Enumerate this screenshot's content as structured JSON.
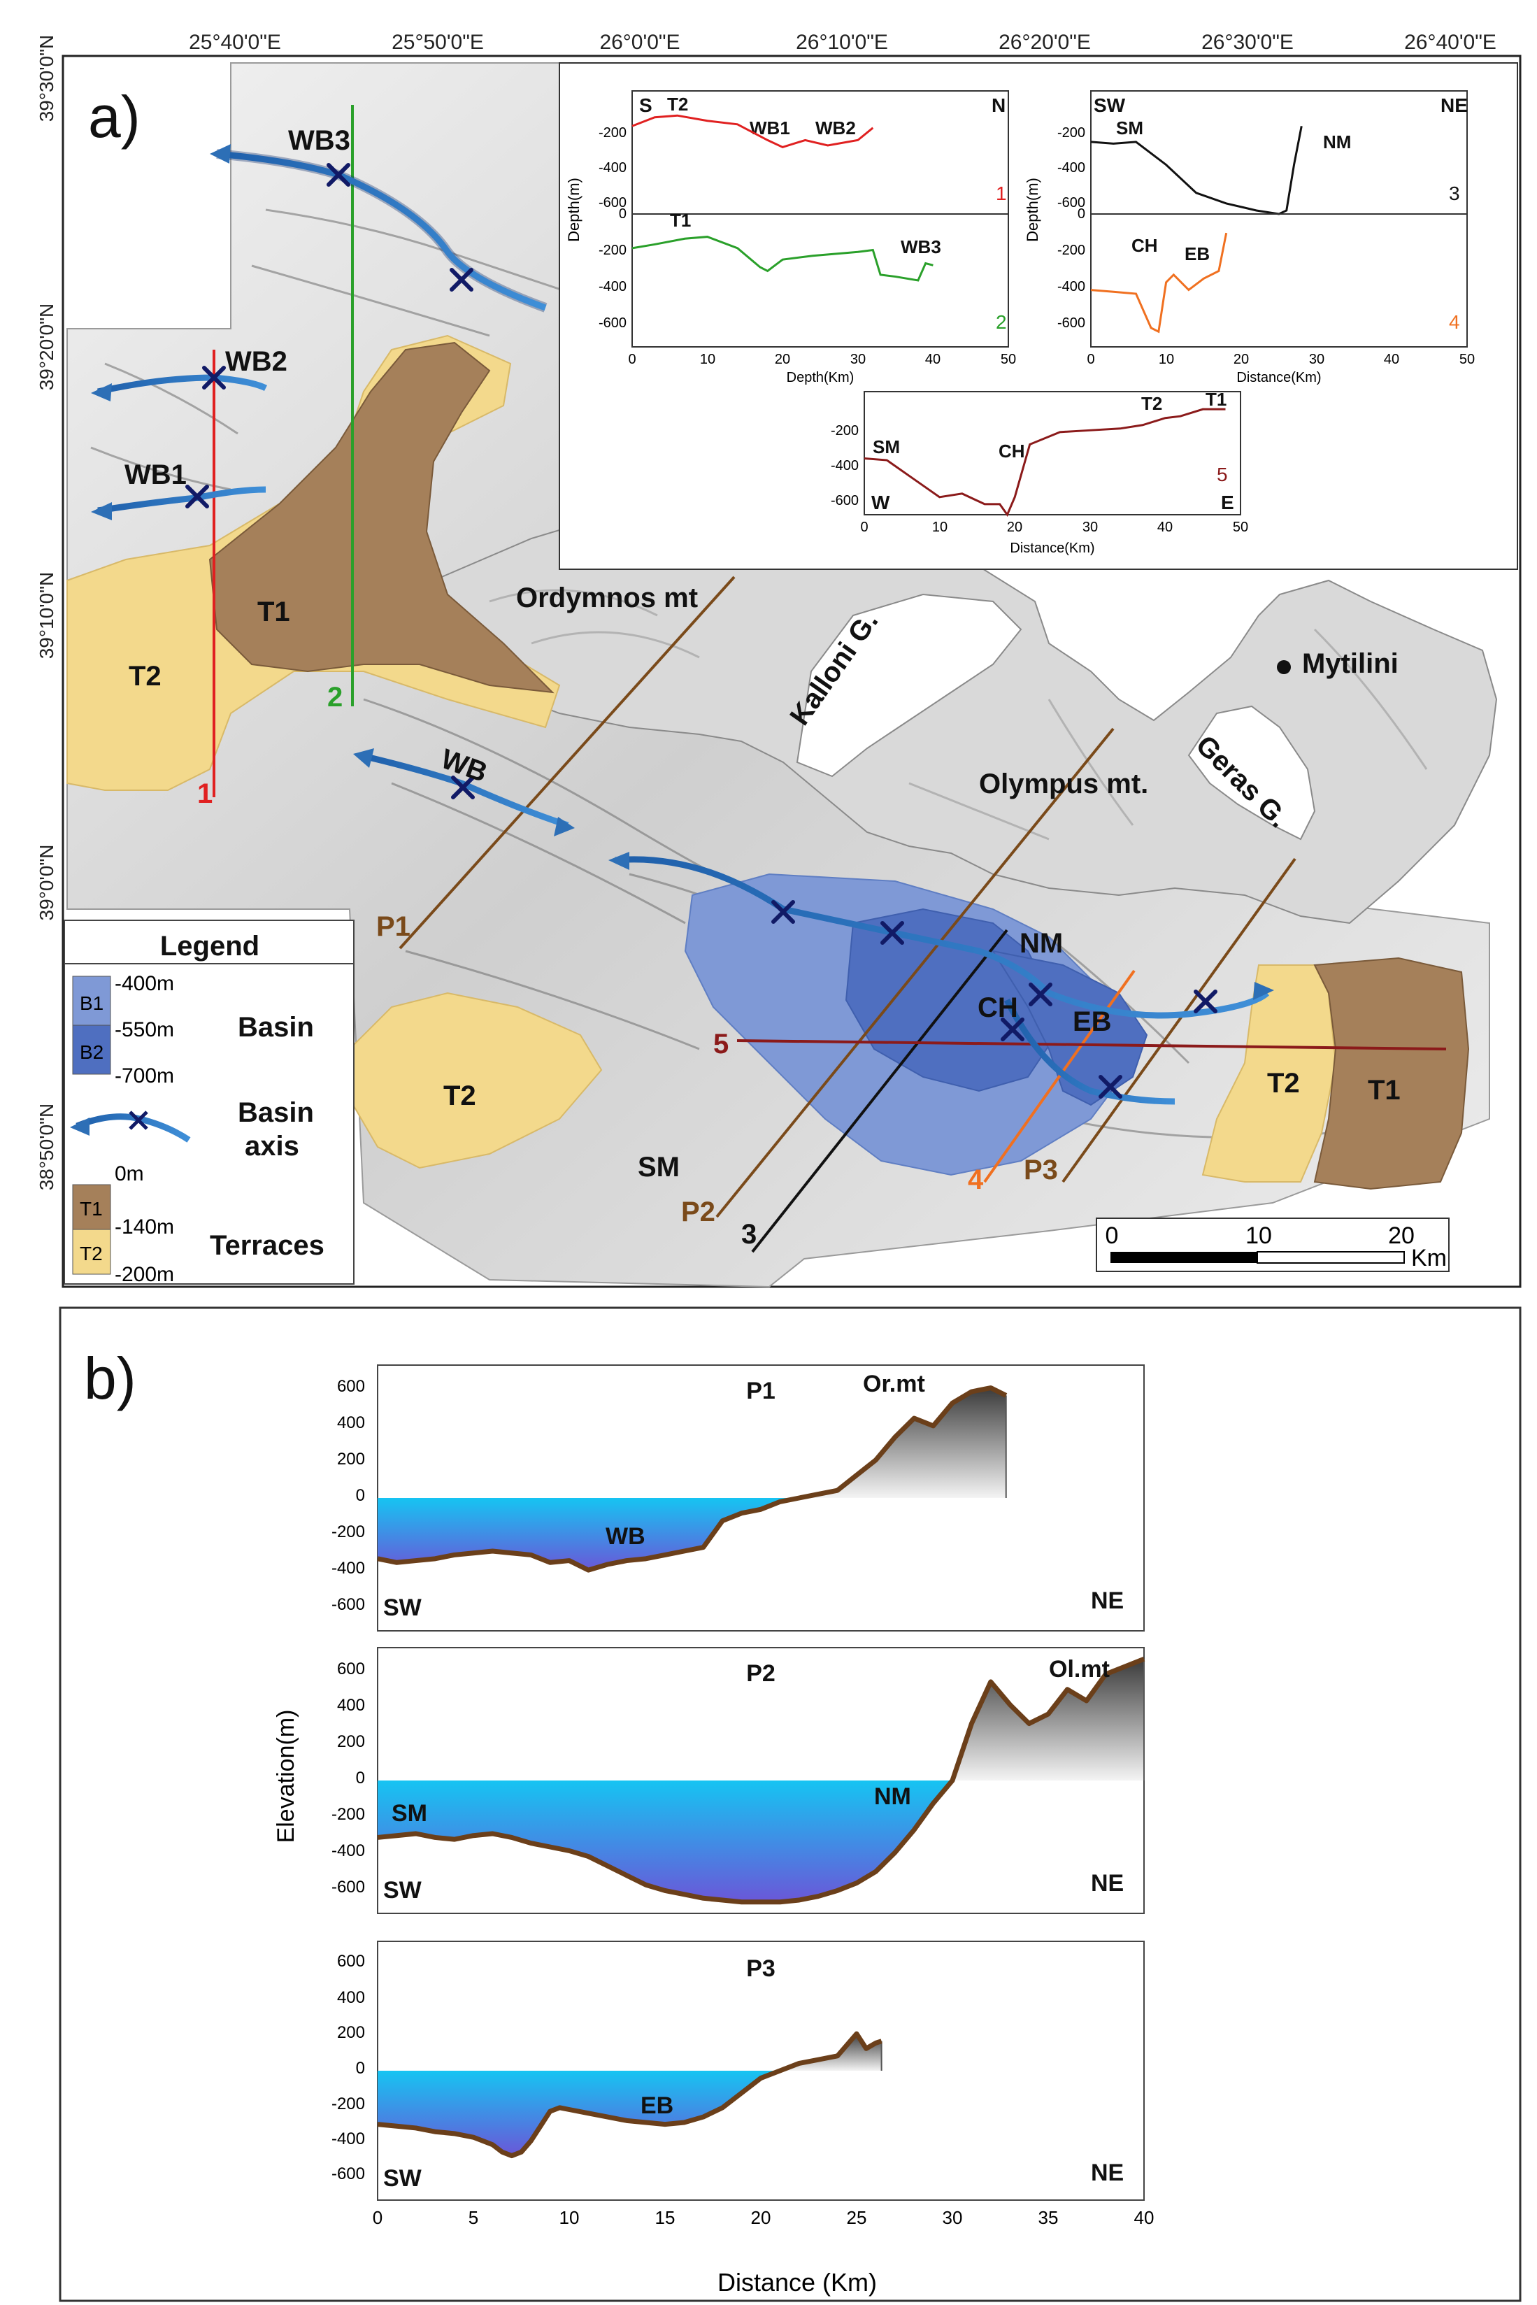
{
  "panel_a": {
    "label": "a)",
    "lon_ticks": [
      "25°40'0\"E",
      "25°50'0\"E",
      "26°0'0\"E",
      "26°10'0\"E",
      "26°20'0\"E",
      "26°30'0\"E",
      "26°40'0\"E"
    ],
    "lat_ticks": [
      "39°30'0\"N",
      "39°20'0\"N",
      "39°10'0\"N",
      "39°0'0\"N",
      "38°50'0\"N"
    ],
    "places": {
      "ordymnos": "Ordymnos mt",
      "kalloni": "Kalloni G.",
      "mytilini": "Mytilini",
      "olympus": "Olympus mt.",
      "geras": "Geras G."
    },
    "feature_labels": {
      "wb3": "WB3",
      "wb2": "WB2",
      "wb1": "WB1",
      "wb": "WB",
      "t1_west": "T1",
      "t2_west": "T2",
      "t2_south": "T2",
      "t2_east": "T2",
      "t1_east": "T1",
      "nm": "NM",
      "ch": "CH",
      "eb": "EB",
      "sm": "SM"
    },
    "profile_lines": {
      "l1": "1",
      "l2": "2",
      "l3": "3",
      "l4": "4",
      "l5": "5",
      "p1": "P1",
      "p2": "P2",
      "p3": "P3"
    },
    "legend": {
      "title": "Legend",
      "b1": "B1",
      "b2": "B2",
      "d400": "-400m",
      "d550": "-550m",
      "d700": "-700m",
      "basin": "Basin",
      "basin_axis_1": "Basin",
      "basin_axis_2": "axis",
      "d0": "0m",
      "d140": "-140m",
      "d200": "-200m",
      "t1": "T1",
      "t2": "T2",
      "terraces": "Terraces"
    },
    "scale_bar": {
      "ticks": [
        "0",
        "10",
        "20"
      ],
      "unit": "Km"
    },
    "colors": {
      "terrace_T1": "#a5805a",
      "terrace_T2": "#f3d98c",
      "basin_B1": "#7f99d6",
      "basin_B2": "#4f6fc0",
      "axis": "#2d6fb6",
      "line1": "#e02020",
      "line2": "#2aa02a",
      "line3": "#111111",
      "line4": "#f07020",
      "line5": "#8b1a1a",
      "lineP": "#7a4a1a"
    },
    "inset_profiles": {
      "p1": {
        "left": "S",
        "right": "N",
        "num": "1",
        "labels": [
          "T2",
          "WB1",
          "WB2"
        ],
        "ylabel": "Depth(m)",
        "yticks": [
          "-200",
          "-400",
          "-600",
          "0"
        ]
      },
      "p2": {
        "num": "2",
        "labels": [
          "T1",
          "WB3"
        ],
        "ylabel": "Depth(m)",
        "yticks": [
          "-200",
          "-400",
          "-600"
        ],
        "xticks": [
          "0",
          "10",
          "20",
          "30",
          "40",
          "50"
        ],
        "xlabel": "Depth(Km)"
      },
      "p3": {
        "left": "SW",
        "right": "NE",
        "num": "3",
        "labels": [
          "SM",
          "NM"
        ],
        "ylabel": "Depth(m)",
        "yticks": [
          "-200",
          "-400",
          "-600",
          "0"
        ]
      },
      "p4": {
        "num": "4",
        "labels": [
          "CH",
          "EB"
        ],
        "yticks": [
          "-200",
          "-400",
          "-600"
        ],
        "xticks": [
          "0",
          "10",
          "20",
          "30",
          "40",
          "50"
        ],
        "xlabel": "Distance(Km)"
      },
      "p5": {
        "num": "5",
        "labels": [
          "SM",
          "CH",
          "T2",
          "T1",
          "W",
          "E"
        ],
        "yticks": [
          "-200",
          "-400",
          "-600"
        ],
        "xticks": [
          "0",
          "10",
          "20",
          "30",
          "40",
          "50"
        ],
        "xlabel": "Distance(Km)"
      }
    }
  },
  "panel_b": {
    "label": "b)",
    "ylabel": "Elevation(m)",
    "xlabel": "Distance (Km)",
    "yticks": [
      "600",
      "400",
      "200",
      "0",
      "-200",
      "-400",
      "-600"
    ],
    "xticks": [
      "0",
      "5",
      "10",
      "15",
      "20",
      "25",
      "30",
      "35",
      "40"
    ],
    "p1": {
      "title": "P1",
      "left": "SW",
      "right": "NE",
      "labels": [
        "Or.mt",
        "WB"
      ]
    },
    "p2": {
      "title": "P2",
      "left": "SW",
      "right": "NE",
      "labels": [
        "Ol.mt",
        "SM",
        "NM"
      ]
    },
    "p3": {
      "title": "P3",
      "left": "SW",
      "right": "NE",
      "labels": [
        "EB"
      ]
    }
  },
  "chart_data": [
    {
      "type": "line",
      "xlabel": "Distance (Km)",
      "ylabel": "Elevation(m)",
      "ylim": [
        -700,
        700
      ],
      "xlim": [
        0,
        40
      ],
      "series": [
        {
          "name": "P1",
          "x": [
            0,
            1,
            2,
            3,
            4,
            5,
            6,
            7,
            8,
            9,
            10,
            11,
            12,
            13,
            14,
            15,
            16,
            17,
            18,
            19,
            20,
            21,
            22,
            23,
            24,
            25,
            26,
            27,
            28,
            29,
            30,
            31,
            32,
            32.8
          ],
          "y": [
            -320,
            -340,
            -330,
            -320,
            -300,
            -290,
            -280,
            -290,
            -300,
            -340,
            -330,
            -380,
            -350,
            -330,
            -320,
            -300,
            -280,
            -260,
            -120,
            -80,
            -60,
            -20,
            0,
            20,
            40,
            120,
            200,
            320,
            420,
            380,
            500,
            560,
            580,
            540
          ]
        }
      ]
    },
    {
      "type": "line",
      "xlabel": "Distance (Km)",
      "ylabel": "Elevation(m)",
      "ylim": [
        -700,
        700
      ],
      "xlim": [
        0,
        40
      ],
      "series": [
        {
          "name": "P2",
          "x": [
            0,
            1,
            2,
            3,
            4,
            5,
            6,
            7,
            8,
            9,
            10,
            11,
            12,
            13,
            14,
            15,
            16,
            17,
            18,
            19,
            20,
            21,
            22,
            23,
            24,
            25,
            26,
            27,
            28,
            29,
            30,
            31,
            32,
            33,
            34,
            35,
            36,
            37,
            38,
            39,
            40
          ],
          "y": [
            -300,
            -290,
            -280,
            -300,
            -310,
            -290,
            -280,
            -300,
            -330,
            -350,
            -370,
            -400,
            -450,
            -500,
            -550,
            -580,
            -600,
            -620,
            -630,
            -640,
            -640,
            -640,
            -630,
            -610,
            -580,
            -540,
            -480,
            -380,
            -260,
            -120,
            0,
            300,
            520,
            400,
            300,
            350,
            480,
            420,
            560,
            600,
            640
          ]
        }
      ]
    },
    {
      "type": "line",
      "xlabel": "Distance (Km)",
      "ylabel": "Elevation(m)",
      "ylim": [
        -700,
        700
      ],
      "xlim": [
        0,
        40
      ],
      "series": [
        {
          "name": "P3",
          "x": [
            0,
            1,
            2,
            3,
            4,
            5,
            6,
            6.5,
            7,
            7.5,
            8,
            8.5,
            9,
            9.5,
            10,
            11,
            12,
            13,
            14,
            15,
            16,
            17,
            18,
            19,
            20,
            21,
            22,
            23,
            24,
            25,
            25.5,
            26,
            26.3
          ],
          "y": [
            -290,
            -300,
            -310,
            -330,
            -340,
            -360,
            -400,
            -440,
            -460,
            -440,
            -380,
            -300,
            -220,
            -200,
            -210,
            -230,
            -250,
            -270,
            -280,
            -290,
            -280,
            -250,
            -200,
            -120,
            -40,
            0,
            40,
            60,
            80,
            200,
            120,
            150,
            160
          ]
        }
      ]
    },
    {
      "type": "line",
      "ylabel": "Depth(m)",
      "xlim": [
        0,
        50
      ],
      "ylim": [
        -700,
        0
      ],
      "series": [
        {
          "name": "1",
          "x": [
            0,
            3,
            6,
            10,
            14,
            18,
            20,
            23,
            26,
            30,
            32
          ],
          "y": [
            -200,
            -150,
            -140,
            -170,
            -190,
            -280,
            -320,
            -280,
            -310,
            -280,
            -210
          ]
        }
      ]
    },
    {
      "type": "line",
      "ylabel": "Depth(m)",
      "xlabel": "Depth(Km)",
      "xlim": [
        0,
        50
      ],
      "ylim": [
        -700,
        0
      ],
      "series": [
        {
          "name": "2",
          "x": [
            0,
            3,
            7,
            10,
            14,
            17,
            18,
            20,
            24,
            30,
            32,
            33,
            35,
            38,
            39,
            40
          ],
          "y": [
            -180,
            -160,
            -130,
            -120,
            -180,
            -280,
            -300,
            -240,
            -220,
            -200,
            -190,
            -320,
            -330,
            -350,
            -260,
            -270
          ]
        }
      ]
    },
    {
      "type": "line",
      "ylabel": "Depth(m)",
      "xlim": [
        0,
        50
      ],
      "ylim": [
        -700,
        0
      ],
      "series": [
        {
          "name": "3",
          "x": [
            0,
            3,
            6,
            10,
            14,
            18,
            22,
            25,
            26,
            27,
            28
          ],
          "y": [
            -290,
            -300,
            -290,
            -420,
            -580,
            -640,
            -680,
            -700,
            -680,
            -420,
            -200
          ]
        }
      ]
    },
    {
      "type": "line",
      "xlabel": "Distance(Km)",
      "xlim": [
        0,
        50
      ],
      "ylim": [
        -700,
        0
      ],
      "series": [
        {
          "name": "4",
          "x": [
            0,
            3,
            6,
            8,
            9,
            10,
            11,
            13,
            15,
            17,
            18
          ],
          "y": [
            -400,
            -410,
            -420,
            -600,
            -620,
            -360,
            -320,
            -400,
            -340,
            -300,
            -100
          ]
        }
      ]
    },
    {
      "type": "line",
      "xlabel": "Distance(Km)",
      "xlim": [
        0,
        50
      ],
      "ylim": [
        -700,
        0
      ],
      "series": [
        {
          "name": "5",
          "x": [
            0,
            3,
            6,
            10,
            13,
            16,
            18,
            19,
            20,
            22,
            26,
            30,
            34,
            37,
            40,
            42,
            45,
            48
          ],
          "y": [
            -380,
            -390,
            -480,
            -600,
            -580,
            -640,
            -640,
            -700,
            -600,
            -300,
            -230,
            -220,
            -210,
            -190,
            -150,
            -140,
            -100,
            -100
          ]
        }
      ]
    }
  ]
}
